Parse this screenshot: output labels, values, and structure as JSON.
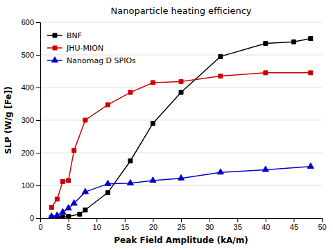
{
  "chart_data": {
    "type": "line",
    "title": "Nanoparticle heating efficiency",
    "x_label": "Peak Field Amplitude (kA/m)",
    "y_label": "SLP (W/g [Fe])",
    "xlim": [
      0,
      50
    ],
    "ylim": [
      0,
      600
    ],
    "xticks": [
      0,
      5,
      10,
      15,
      20,
      25,
      30,
      35,
      40,
      45,
      50
    ],
    "yticks": [
      0,
      100,
      200,
      300,
      400,
      500,
      600
    ],
    "grid": "y",
    "legend": "upper left",
    "series": [
      {
        "name": "BNF",
        "color": "#000000",
        "marker": "square",
        "x": [
          2,
          3,
          4,
          5,
          7,
          8,
          12,
          16,
          20,
          25,
          32,
          40,
          45,
          48
        ],
        "values": [
          2,
          2,
          3,
          5,
          12,
          25,
          78,
          175,
          290,
          385,
          495,
          535,
          540,
          550
        ]
      },
      {
        "name": "JHU-MION",
        "color": "#cc0000",
        "marker": "square",
        "x": [
          2,
          3,
          4,
          5,
          6,
          8,
          12,
          16,
          20,
          25,
          32,
          40,
          48
        ],
        "values": [
          33,
          58,
          112,
          115,
          207,
          300,
          347,
          385,
          415,
          418,
          435,
          445,
          445
        ]
      },
      {
        "name": "Nanomag D SPIOs",
        "color": "#0000cc",
        "marker": "triangle",
        "x": [
          2,
          3,
          4,
          5,
          6,
          8,
          12,
          16,
          20,
          25,
          32,
          40,
          48
        ],
        "values": [
          5,
          8,
          18,
          30,
          45,
          80,
          105,
          107,
          115,
          122,
          140,
          148,
          158
        ]
      }
    ]
  }
}
